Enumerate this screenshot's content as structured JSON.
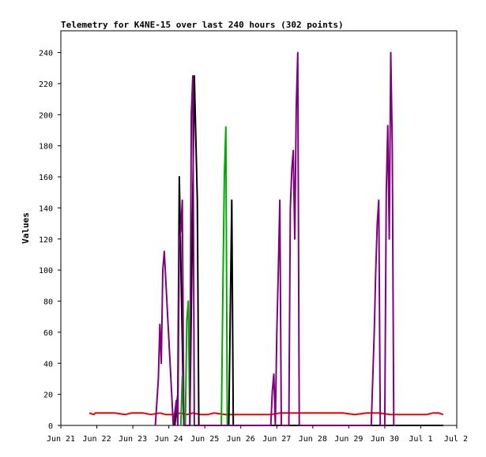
{
  "chart_data": {
    "type": "line",
    "title": "Telemetry for K4NE-15 over last 240 hours (302 points)",
    "xlabel": "",
    "ylabel": "Values",
    "x_unit": "hours since Jun 21 00:00",
    "xlim": [
      0,
      264
    ],
    "ylim": [
      0,
      254
    ],
    "x_ticks": [
      {
        "label": "Jun 21",
        "x": 0
      },
      {
        "label": "Jun 22",
        "x": 24
      },
      {
        "label": "Jun 23",
        "x": 48
      },
      {
        "label": "Jun 24",
        "x": 72
      },
      {
        "label": "Jun 25",
        "x": 96
      },
      {
        "label": "Jun 26",
        "x": 120
      },
      {
        "label": "Jun 27",
        "x": 144
      },
      {
        "label": "Jun 28",
        "x": 168
      },
      {
        "label": "Jun 29",
        "x": 192
      },
      {
        "label": "Jun 30",
        "x": 216
      },
      {
        "label": "Jul 1",
        "x": 240
      },
      {
        "label": "Jul 2",
        "x": 264
      }
    ],
    "y_ticks": [
      0,
      20,
      40,
      60,
      80,
      100,
      120,
      140,
      160,
      180,
      200,
      220,
      240
    ],
    "grid": false,
    "legend": "none",
    "series": [
      {
        "color": "#ee0000",
        "x": [
          19,
          22,
          23,
          30,
          36,
          43,
          47,
          55,
          60,
          66,
          70,
          74,
          80,
          84,
          88,
          93,
          98,
          102,
          110,
          118,
          126,
          132,
          140,
          146,
          156,
          164,
          172,
          180,
          188,
          196,
          204,
          212,
          220,
          228,
          236,
          244,
          248,
          252,
          255
        ],
        "values": [
          8,
          7,
          8,
          8,
          8,
          7,
          8,
          8,
          7,
          8,
          7,
          7,
          8,
          7,
          8,
          7,
          7,
          8,
          7,
          7,
          7,
          7,
          7,
          8,
          8,
          8,
          8,
          8,
          8,
          7,
          8,
          8,
          7,
          7,
          7,
          7,
          8,
          8,
          7
        ]
      },
      {
        "color": "#000000",
        "x": [
          76,
          78,
          79,
          82,
          84,
          86,
          89,
          91,
          92,
          112,
          114,
          115,
          116,
          118,
          124,
          136,
          150,
          176,
          200,
          230,
          255
        ],
        "values": [
          0,
          20,
          160,
          0,
          0,
          0,
          225,
          145,
          0,
          0,
          145,
          0,
          0,
          0,
          0,
          0,
          0,
          0,
          0,
          0,
          0
        ]
      },
      {
        "color": "#00aa00",
        "x": [
          80,
          81,
          82,
          83,
          84,
          85,
          86,
          107,
          108,
          109,
          110,
          111,
          112
        ],
        "values": [
          0,
          32,
          0,
          0,
          68,
          80,
          0,
          0,
          85,
          160,
          192,
          0,
          0
        ]
      },
      {
        "color": "#800080",
        "x": [
          63,
          65,
          66,
          67,
          68,
          69,
          75,
          76,
          77,
          78,
          79,
          80,
          81,
          82,
          83,
          84,
          86,
          87,
          88,
          89,
          90,
          91,
          92,
          140,
          141,
          142,
          143,
          144,
          145,
          146,
          147,
          148,
          149,
          152,
          153,
          154,
          155,
          156,
          157,
          158,
          159,
          160,
          161,
          207,
          208,
          209,
          210,
          211,
          212,
          213,
          214,
          215,
          216,
          217,
          218,
          219,
          220,
          221,
          222,
          223
        ],
        "values": [
          0,
          30,
          65,
          40,
          100,
          112,
          0,
          8,
          16,
          0,
          120,
          125,
          145,
          0,
          0,
          0,
          0,
          200,
          225,
          0,
          0,
          0,
          0,
          0,
          22,
          33,
          0,
          60,
          100,
          145,
          0,
          0,
          0,
          0,
          140,
          165,
          177,
          120,
          205,
          240,
          0,
          0,
          0,
          0,
          30,
          60,
          100,
          130,
          145,
          0,
          0,
          0,
          0,
          150,
          193,
          120,
          240,
          180,
          0,
          0
        ]
      }
    ]
  }
}
